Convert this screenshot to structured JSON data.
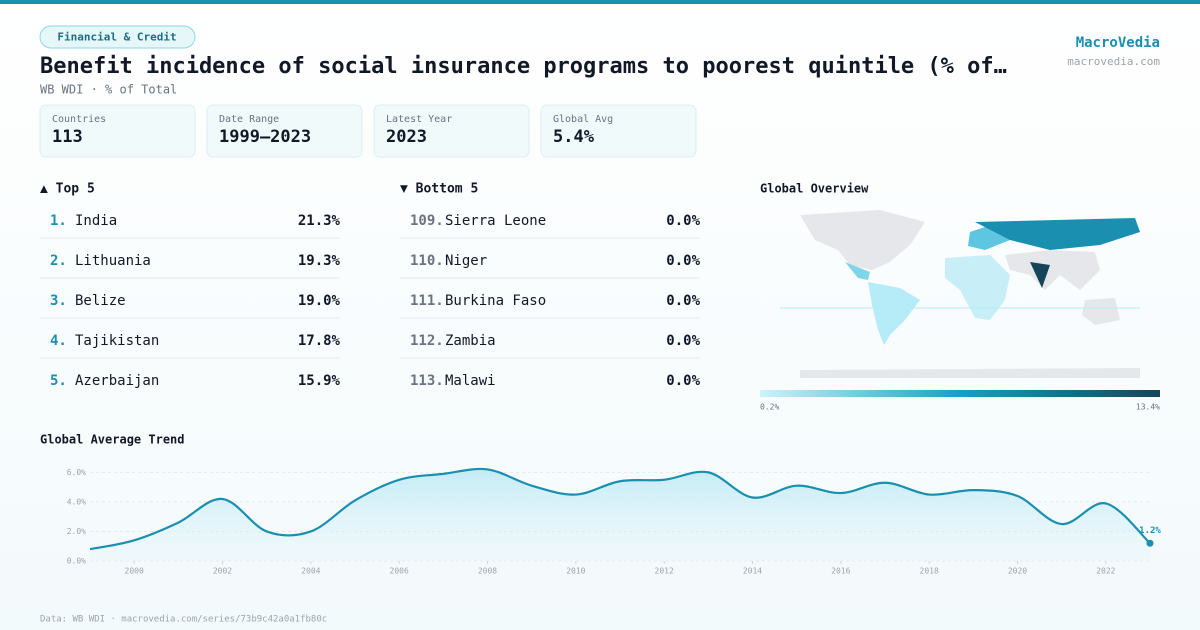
{
  "header": {
    "tag": "Financial & Credit",
    "title": "Benefit incidence of social insurance programs to poorest quintile (% of…",
    "subtitle": "WB WDI · % of Total",
    "brand": "MacroVedia",
    "site": "macrovedia.com"
  },
  "stats": [
    {
      "label": "Countries",
      "value": "113"
    },
    {
      "label": "Date Range",
      "value": "1999–2023"
    },
    {
      "label": "Latest Year",
      "value": "2023"
    },
    {
      "label": "Global Avg",
      "value": "5.4%"
    }
  ],
  "top": {
    "title": "▲ Top 5",
    "rows": [
      {
        "rank": "1.",
        "name": "India",
        "value": "21.3%"
      },
      {
        "rank": "2.",
        "name": "Lithuania",
        "value": "19.3%"
      },
      {
        "rank": "3.",
        "name": "Belize",
        "value": "19.0%"
      },
      {
        "rank": "4.",
        "name": "Tajikistan",
        "value": "17.8%"
      },
      {
        "rank": "5.",
        "name": "Azerbaijan",
        "value": "15.9%"
      }
    ]
  },
  "bottom": {
    "title": "▼ Bottom 5",
    "rows": [
      {
        "rank": "109.",
        "name": "Sierra Leone",
        "value": "0.0%"
      },
      {
        "rank": "110.",
        "name": "Niger",
        "value": "0.0%"
      },
      {
        "rank": "111.",
        "name": "Burkina Faso",
        "value": "0.0%"
      },
      {
        "rank": "112.",
        "name": "Zambia",
        "value": "0.0%"
      },
      {
        "rank": "113.",
        "name": "Malawi",
        "value": "0.0%"
      }
    ]
  },
  "map": {
    "title": "Global Overview",
    "legend_min": "0.2%",
    "legend_max": "13.4%"
  },
  "chart_data": {
    "type": "line",
    "title": "Global Average Trend",
    "x": [
      1999,
      2000,
      2001,
      2002,
      2003,
      2004,
      2005,
      2006,
      2007,
      2008,
      2009,
      2010,
      2011,
      2012,
      2013,
      2014,
      2015,
      2016,
      2017,
      2018,
      2019,
      2020,
      2021,
      2022,
      2023
    ],
    "values": [
      0.8,
      1.4,
      2.6,
      4.2,
      2.0,
      2.0,
      4.1,
      5.5,
      5.9,
      6.2,
      5.1,
      4.5,
      5.4,
      5.5,
      6.0,
      4.3,
      5.1,
      4.6,
      5.3,
      4.5,
      4.8,
      4.4,
      2.5,
      3.9,
      1.2
    ],
    "value_labels": [
      null,
      null,
      null,
      null,
      null,
      null,
      null,
      null,
      null,
      null,
      null,
      null,
      null,
      null,
      null,
      null,
      null,
      null,
      null,
      null,
      null,
      null,
      null,
      null,
      "1.2%"
    ],
    "color": "#1a8fb0",
    "xlim": [
      1999,
      2023
    ],
    "ylim": [
      0,
      6.5
    ],
    "xticks": [
      2000,
      2002,
      2004,
      2006,
      2008,
      2010,
      2012,
      2014,
      2016,
      2018,
      2020,
      2022
    ],
    "yticks": [
      {
        "value": 0,
        "label": "0.0%"
      },
      {
        "value": 2,
        "label": "2.0%"
      },
      {
        "value": 4,
        "label": "4.0%"
      },
      {
        "value": 6,
        "label": "6.0%"
      }
    ],
    "grid": true
  },
  "footer": "Data: WB WDI · macrovedia.com/series/73b9c42a0a1fb80c"
}
